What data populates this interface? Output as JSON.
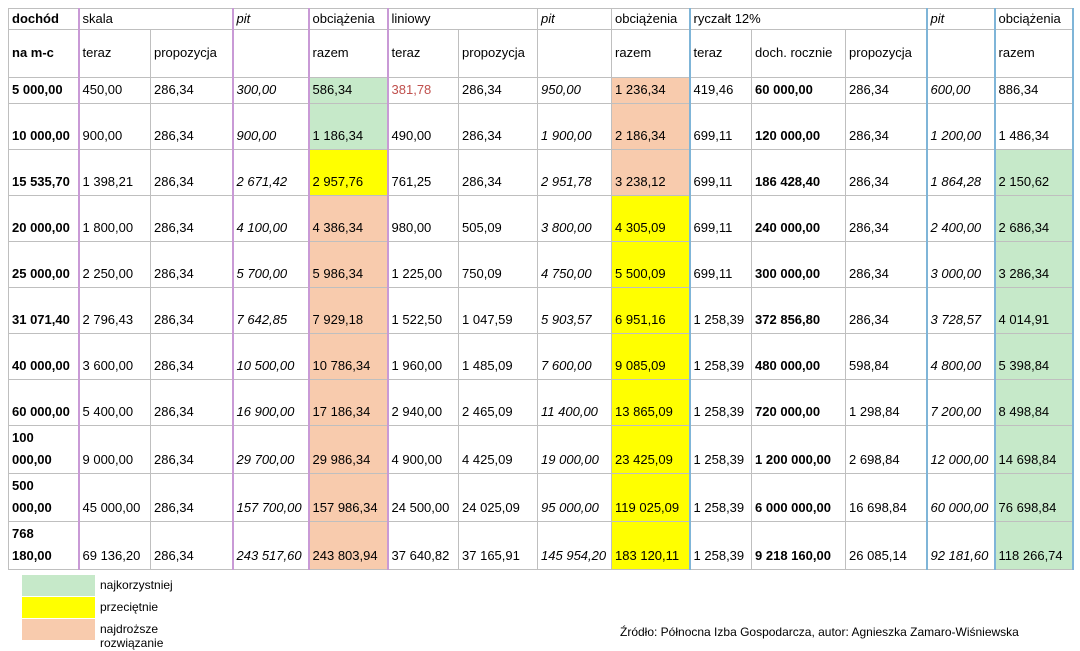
{
  "table": {
    "header": {
      "row1": [
        "dochód",
        "skala",
        "pit",
        "obciążenia",
        "liniowy",
        "pit",
        "obciążenia",
        "ryczałt 12%",
        "pit",
        "obciążenia"
      ],
      "row2": [
        "na m-c",
        "teraz",
        "propozycja",
        "razem",
        "teraz",
        "propozycja",
        "razem",
        "teraz",
        "doch. rocznie",
        "propozycja",
        "razem"
      ]
    },
    "rows": [
      {
        "cells": [
          "5 000,00",
          "450,00",
          "286,34",
          "300,00",
          "586,34",
          "381,78",
          "286,34",
          "950,00",
          "1 236,34",
          "419,46",
          "60 000,00",
          "286,34",
          "600,00",
          "886,34"
        ],
        "fills": {
          "4": "#c6e9c9",
          "8": "#f8cbad"
        },
        "text_colors": {
          "5": "#c0504d"
        }
      },
      {
        "cells": [
          "10 000,00",
          "900,00",
          "286,34",
          "900,00",
          "1 186,34",
          "490,00",
          "286,34",
          "1 900,00",
          "2 186,34",
          "699,11",
          "120 000,00",
          "286,34",
          "1 200,00",
          "1 486,34"
        ],
        "fills": {
          "4": "#c6e9c9",
          "8": "#f8cbad"
        }
      },
      {
        "cells": [
          "15 535,70",
          "1 398,21",
          "286,34",
          "2 671,42",
          "2 957,76",
          "761,25",
          "286,34",
          "2 951,78",
          "3 238,12",
          "699,11",
          "186 428,40",
          "286,34",
          "1 864,28",
          "2 150,62"
        ],
        "fills": {
          "4": "#ffff00",
          "8": "#f8cbad",
          "13": "#c6e9c9"
        }
      },
      {
        "cells": [
          "20 000,00",
          "1 800,00",
          "286,34",
          "4 100,00",
          "4 386,34",
          "980,00",
          "505,09",
          "3 800,00",
          "4 305,09",
          "699,11",
          "240 000,00",
          "286,34",
          "2 400,00",
          "2 686,34"
        ],
        "fills": {
          "4": "#f8cbad",
          "8": "#ffff00",
          "13": "#c6e9c9"
        }
      },
      {
        "cells": [
          "25 000,00",
          "2 250,00",
          "286,34",
          "5 700,00",
          "5 986,34",
          "1 225,00",
          "750,09",
          "4 750,00",
          "5 500,09",
          "699,11",
          "300 000,00",
          "286,34",
          "3 000,00",
          "3 286,34"
        ],
        "fills": {
          "4": "#f8cbad",
          "8": "#ffff00",
          "13": "#c6e9c9"
        }
      },
      {
        "cells": [
          "31 071,40",
          "2 796,43",
          "286,34",
          "7 642,85",
          "7 929,18",
          "1 522,50",
          "1 047,59",
          "5 903,57",
          "6 951,16",
          "1 258,39",
          "372 856,80",
          "286,34",
          "3 728,57",
          "4 014,91"
        ],
        "fills": {
          "4": "#f8cbad",
          "8": "#ffff00",
          "13": "#c6e9c9"
        }
      },
      {
        "cells": [
          "40 000,00",
          "3 600,00",
          "286,34",
          "10 500,00",
          "10 786,34",
          "1 960,00",
          "1 485,09",
          "7 600,00",
          "9 085,09",
          "1 258,39",
          "480 000,00",
          "598,84",
          "4 800,00",
          "5 398,84"
        ],
        "fills": {
          "4": "#f8cbad",
          "8": "#ffff00",
          "13": "#c6e9c9"
        }
      },
      {
        "cells": [
          "60 000,00",
          "5 400,00",
          "286,34",
          "16 900,00",
          "17 186,34",
          "2 940,00",
          "2 465,09",
          "11 400,00",
          "13 865,09",
          "1 258,39",
          "720 000,00",
          "1 298,84",
          "7 200,00",
          "8 498,84"
        ],
        "fills": {
          "4": "#f8cbad",
          "8": "#ffff00",
          "13": "#c6e9c9"
        }
      },
      {
        "cells": [
          "100 000,00",
          "9 000,00",
          "286,34",
          "29 700,00",
          "29 986,34",
          "4 900,00",
          "4 425,09",
          "19 000,00",
          "23 425,09",
          "1 258,39",
          "1 200 000,00",
          "2 698,84",
          "12 000,00",
          "14 698,84"
        ],
        "fills": {
          "4": "#f8cbad",
          "8": "#ffff00",
          "13": "#c6e9c9"
        }
      },
      {
        "cells": [
          "500 000,00",
          "45 000,00",
          "286,34",
          "157 700,00",
          "157 986,34",
          "24 500,00",
          "24 025,09",
          "95 000,00",
          "119 025,09",
          "1 258,39",
          "6 000 000,00",
          "16 698,84",
          "60 000,00",
          "76 698,84"
        ],
        "fills": {
          "4": "#f8cbad",
          "8": "#ffff00",
          "13": "#c6e9c9"
        }
      },
      {
        "cells": [
          "768 180,00",
          "69 136,20",
          "286,34",
          "243 517,60",
          "243 803,94",
          "37 640,82",
          "37 165,91",
          "145 954,20",
          "183 120,11",
          "1 258,39",
          "9 218 160,00",
          "26 085,14",
          "92 181,60",
          "118 266,74"
        ],
        "fills": {
          "4": "#f8cbad",
          "8": "#ffff00",
          "13": "#c6e9c9"
        }
      }
    ]
  },
  "legend": [
    {
      "label": "najkorzystniej",
      "color": "#c6e9c9"
    },
    {
      "label": "przeciętnie",
      "color": "#ffff00"
    },
    {
      "label": "najdroższe rozwiązanie",
      "color": "#f8cbad"
    }
  ],
  "source": "Źródło: Północna Izba Gospodarcza, autor: Agnieszka Zamaro-Wiśniewska"
}
